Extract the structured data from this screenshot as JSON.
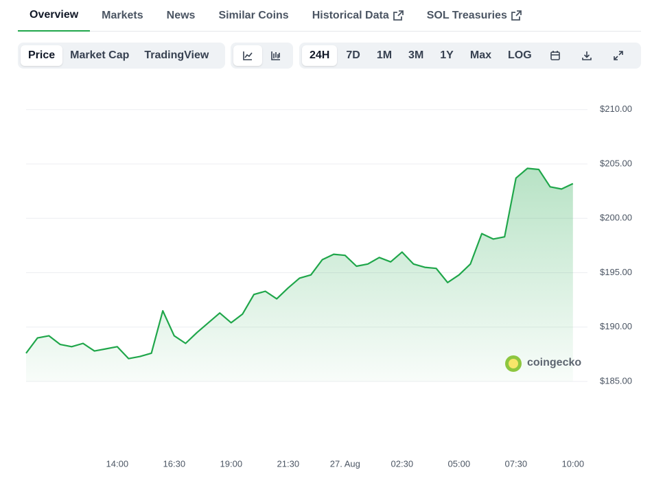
{
  "tabs": [
    "Overview",
    "Markets",
    "News",
    "Similar Coins",
    "Historical Data",
    "SOL Treasuries"
  ],
  "toolbar": {
    "views": [
      "Price",
      "Market Cap",
      "TradingView"
    ],
    "ranges": [
      "24H",
      "7D",
      "1M",
      "3M",
      "1Y",
      "Max",
      "LOG"
    ]
  },
  "watermark": "coingecko",
  "chart_data": {
    "type": "area",
    "color": "#1fa64a",
    "categories": [
      null,
      null,
      null,
      null,
      null,
      null,
      null,
      null,
      "14:00",
      null,
      null,
      null,
      null,
      "16:30",
      null,
      null,
      null,
      null,
      "19:00",
      null,
      null,
      null,
      null,
      "21:30",
      null,
      null,
      null,
      null,
      "27. Aug",
      null,
      null,
      null,
      null,
      "02:30",
      null,
      null,
      null,
      null,
      "05:00",
      null,
      null,
      null,
      null,
      "07:30",
      null,
      null,
      null,
      null,
      "10:00"
    ],
    "values": [
      187.6,
      189.0,
      189.2,
      188.4,
      188.2,
      188.5,
      187.8,
      188.0,
      188.2,
      187.1,
      187.3,
      187.6,
      191.5,
      189.2,
      188.5,
      189.5,
      190.4,
      191.3,
      190.4,
      191.2,
      193.0,
      193.3,
      192.6,
      193.6,
      194.5,
      194.8,
      196.2,
      196.7,
      196.6,
      195.6,
      195.8,
      196.4,
      196.0,
      196.9,
      195.8,
      195.5,
      195.4,
      194.1,
      194.8,
      195.8,
      198.6,
      198.1,
      198.3,
      203.7,
      204.6,
      204.5,
      202.9,
      202.7,
      203.2
    ],
    "ylim": [
      185,
      211.25
    ],
    "yticks": [
      {
        "value": 185,
        "label": "$185.00"
      },
      {
        "value": 190,
        "label": "$190.00"
      },
      {
        "value": 195,
        "label": "$195.00"
      },
      {
        "value": 200,
        "label": "$200.00"
      },
      {
        "value": 205,
        "label": "$205.00"
      },
      {
        "value": 210,
        "label": "$210.00"
      }
    ],
    "grid": true
  }
}
